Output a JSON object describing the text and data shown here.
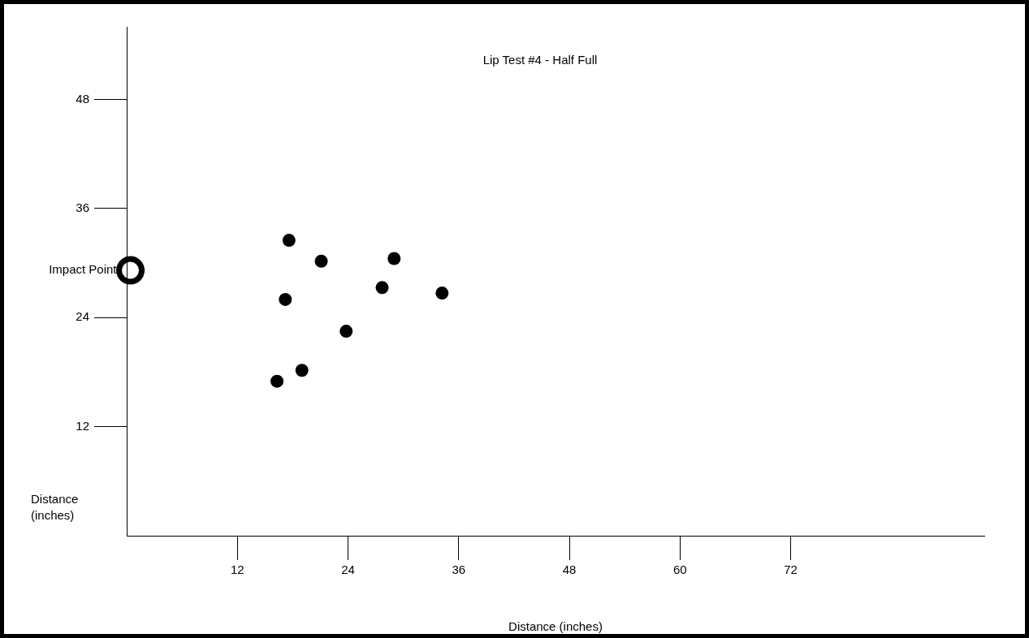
{
  "chart_data": {
    "type": "scatter",
    "title": "Lip Test #4 - Half Full",
    "xlabel": "Distance (inches)",
    "ylabel": "Distance (inches)",
    "xlim": [
      0,
      93
    ],
    "ylim": [
      0,
      56
    ],
    "xticks": [
      12,
      24,
      36,
      48,
      60,
      72
    ],
    "yticks": [
      12,
      24,
      36,
      48
    ],
    "grid": false,
    "legend": false,
    "marker": "circle",
    "annotations": [
      {
        "text": "Impact Point",
        "x": 0.4,
        "y": 29.2
      }
    ],
    "series": [
      {
        "color": "#000000",
        "x": [
          0.4
        ],
        "values": [
          29.2
        ]
      },
      {
        "color": "#000000",
        "x": [
          17.6,
          21.1,
          29.0,
          27.7,
          34.2,
          17.2,
          23.8,
          19.0,
          16.3
        ],
        "values": [
          32.5,
          30.2,
          30.5,
          27.3,
          26.7,
          26.0,
          22.5,
          18.2,
          17.0
        ]
      }
    ]
  }
}
